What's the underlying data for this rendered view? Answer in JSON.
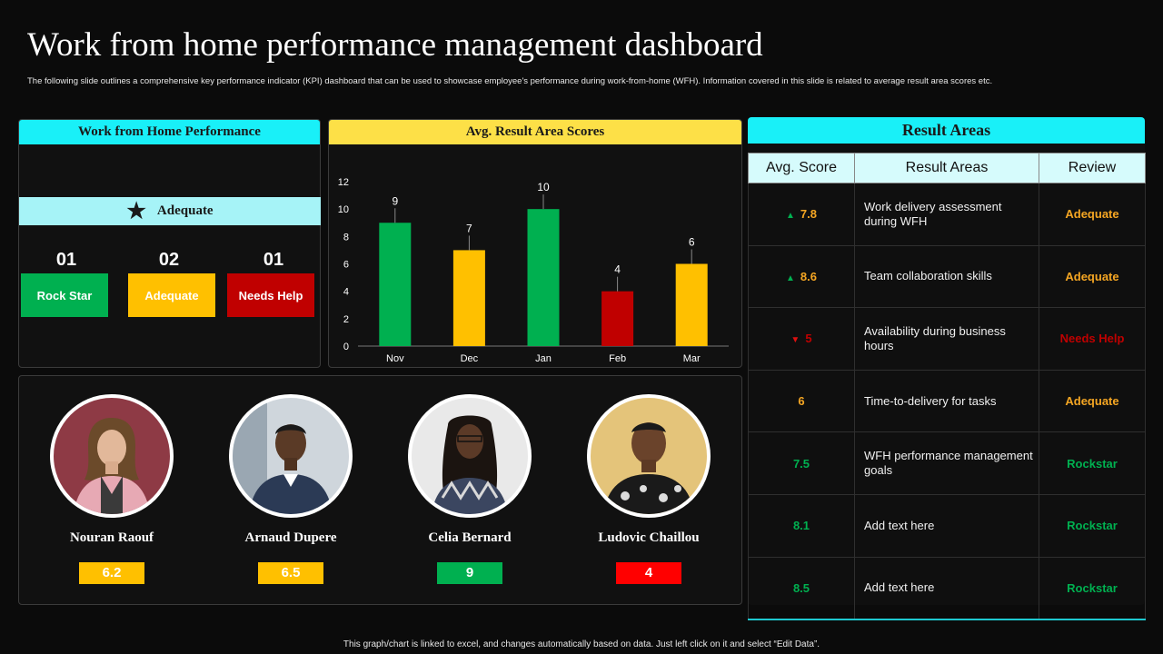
{
  "page": {
    "title": "Work from home performance management dashboard",
    "subtitle": "The following slide outlines a comprehensive key performance indicator (KPI) dashboard that can be used to showcase employee's performance during work-from-home (WFH). Information covered in this slide is related to average result area scores etc.",
    "footer": "This graph/chart is linked to excel, and changes automatically based on data. Just left click on it and select “Edit Data”."
  },
  "colors": {
    "cyan": "#19f0f8",
    "yellow": "#fde047",
    "green": "#00b050",
    "amber": "#ffc000",
    "red": "#c00000",
    "orange": "#f5a623"
  },
  "wfh": {
    "header": "Work from Home Performance",
    "rating_icon": "star-icon",
    "rating_label": "Adequate",
    "categories": [
      {
        "count": "01",
        "label": "Rock Star",
        "color": "#00b050"
      },
      {
        "count": "02",
        "label": "Adequate",
        "color": "#ffc000"
      },
      {
        "count": "01",
        "label": "Needs Help",
        "color": "#c00000"
      }
    ]
  },
  "chart_data": {
    "type": "bar",
    "title": "Avg. Result Area Scores",
    "categories": [
      "Nov",
      "Dec",
      "Jan",
      "Feb",
      "Mar"
    ],
    "values": [
      9,
      7,
      10,
      4,
      6
    ],
    "bar_colors": [
      "#00b050",
      "#ffc000",
      "#00b050",
      "#c00000",
      "#ffc000"
    ],
    "ylim": [
      0,
      12
    ],
    "yticks": [
      0,
      2,
      4,
      6,
      8,
      10,
      12
    ],
    "data_labels": true,
    "grid": false,
    "xlabel": "",
    "ylabel": ""
  },
  "people": [
    {
      "name": "Nouran Raouf",
      "score": "6.2",
      "color": "#ffc000"
    },
    {
      "name": "Arnaud Dupere",
      "score": "6.5",
      "color": "#ffc000"
    },
    {
      "name": "Celia Bernard",
      "score": "9",
      "color": "#00b050"
    },
    {
      "name": "Ludovic Chaillou",
      "score": "4",
      "color": "#ff0000"
    }
  ],
  "result_areas": {
    "header": "Result Areas",
    "columns": [
      "Avg. Score",
      "Result Areas",
      "Review"
    ],
    "rows": [
      {
        "trend": "up",
        "score": "7.8",
        "area": "Work delivery assessment during WFH",
        "review": "Adequate",
        "score_color": "#f5a623",
        "review_color": "#f5a623"
      },
      {
        "trend": "up",
        "score": "8.6",
        "area": "Team collaboration skills",
        "review": "Adequate",
        "score_color": "#f5a623",
        "review_color": "#f5a623"
      },
      {
        "trend": "down",
        "score": "5",
        "area": "Availability during business hours",
        "review": "Needs Help",
        "score_color": "#c00000",
        "review_color": "#c00000"
      },
      {
        "trend": "",
        "score": "6",
        "area": "Time-to-delivery  for tasks",
        "review": "Adequate",
        "score_color": "#f5a623",
        "review_color": "#f5a623"
      },
      {
        "trend": "",
        "score": "7.5",
        "area": "WFH performance management goals",
        "review": "Rockstar",
        "score_color": "#00b050",
        "review_color": "#00b050"
      },
      {
        "trend": "",
        "score": "8.1",
        "area": "Add text here",
        "review": "Rockstar",
        "score_color": "#00b050",
        "review_color": "#00b050"
      },
      {
        "trend": "",
        "score": "8.5",
        "area": "Add text here",
        "review": "Rockstar",
        "score_color": "#00b050",
        "review_color": "#00b050"
      }
    ]
  }
}
